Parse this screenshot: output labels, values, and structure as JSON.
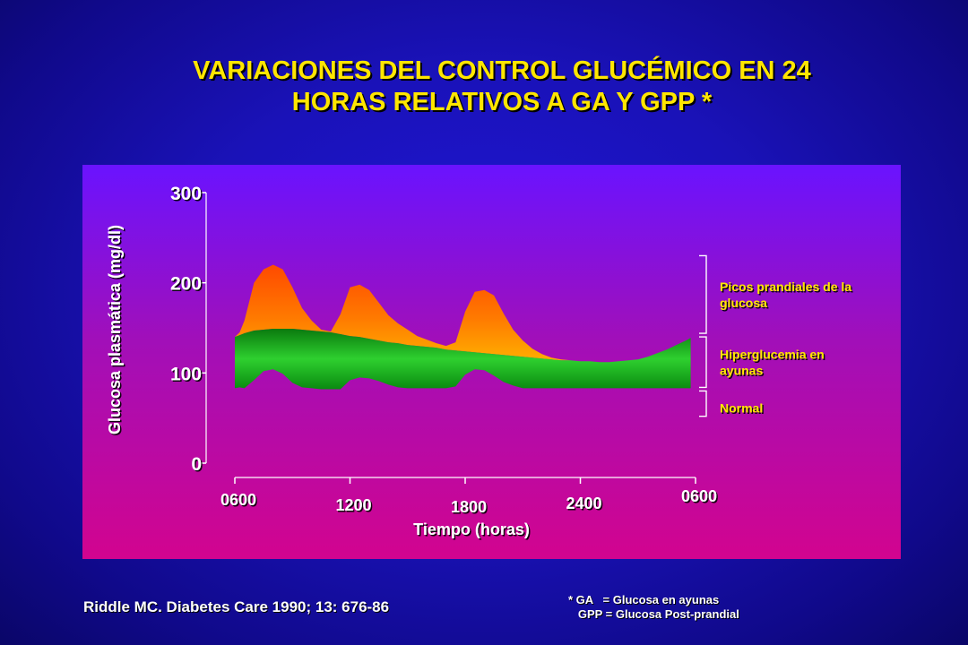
{
  "title_line1": "VARIACIONES DEL CONTROL GLUCÉMICO EN 24",
  "title_line2": "HORAS RELATIVOS A GA Y GPP *",
  "citation": "Riddle MC. Diabetes Care 1990; 13: 676-86",
  "footnote": {
    "line1": "* GA   = Glucosa en ayunas",
    "line2": "   GPP = Glucosa Post-prandial"
  },
  "chart_data": {
    "type": "area",
    "ylabel": "Glucosa plasmática (mg/dl)",
    "xlabel": "Tiempo (horas)",
    "ylim": [
      0,
      300
    ],
    "yticks": [
      0,
      100,
      200,
      300
    ],
    "ytick_labels": [
      "0",
      "100",
      "200",
      "300"
    ],
    "xlim": [
      0,
      24
    ],
    "xticks": [
      0,
      6,
      12,
      18,
      24
    ],
    "xtick_labels": [
      "0600",
      "1200",
      "1800",
      "2400",
      "0600"
    ],
    "x_time_hours": [
      0,
      0.25,
      0.5,
      1,
      1.5,
      2,
      2.5,
      3,
      3.5,
      4,
      4.5,
      5,
      5.5,
      6,
      6.5,
      7,
      7.5,
      8,
      8.5,
      9,
      9.5,
      10,
      10.5,
      11,
      11.5,
      12,
      12.5,
      13,
      13.5,
      14,
      14.5,
      15,
      15.5,
      16,
      16.5,
      17,
      17.5,
      18,
      18.5,
      19,
      19.5,
      20,
      20.5,
      21,
      21.5,
      22,
      22.5,
      23,
      23.5,
      23.75
    ],
    "series": [
      {
        "name": "Picos prandiales de la glucosa",
        "color": "#ff7a00",
        "values": [
          140,
          145,
          158,
          200,
          215,
          220,
          215,
          195,
          172,
          158,
          148,
          146,
          165,
          195,
          198,
          192,
          178,
          164,
          155,
          148,
          141,
          137,
          133,
          130,
          134,
          168,
          190,
          192,
          186,
          166,
          148,
          136,
          127,
          121,
          117,
          115,
          114,
          113,
          113,
          112,
          112,
          113,
          114,
          115,
          118,
          122,
          126,
          131,
          136,
          139
        ]
      },
      {
        "name": "Hiperglucemia en ayunas",
        "color": "#19b81e",
        "values": [
          140,
          142,
          144,
          147,
          148,
          149,
          149,
          149,
          148,
          147,
          146,
          145,
          143,
          141,
          140,
          138,
          136,
          134,
          133,
          131,
          130,
          129,
          128,
          126,
          125,
          124,
          123,
          122,
          121,
          120,
          119,
          118,
          117,
          116,
          115,
          114,
          114,
          113,
          113,
          112,
          112,
          113,
          114,
          115,
          118,
          122,
          126,
          131,
          136,
          139
        ]
      },
      {
        "name": "Normal",
        "color": "#0a8a10",
        "values": [
          83,
          84,
          83,
          92,
          102,
          104,
          99,
          89,
          84,
          83,
          82,
          82,
          82,
          92,
          95,
          94,
          91,
          87,
          84,
          83,
          83,
          83,
          83,
          83,
          85,
          98,
          104,
          103,
          97,
          90,
          86,
          83,
          83,
          83,
          83,
          83,
          83,
          83,
          83,
          83,
          83,
          83,
          83,
          83,
          83,
          83,
          83,
          83,
          83,
          83
        ]
      }
    ],
    "brackets": [
      {
        "label": "Picos prandiales de la glucosa",
        "range": [
          142,
          232
        ]
      },
      {
        "label": "Hiperglucemia en ayunas",
        "range": [
          82,
          142
        ]
      },
      {
        "label": "Normal",
        "range": [
          50,
          82
        ]
      }
    ]
  }
}
